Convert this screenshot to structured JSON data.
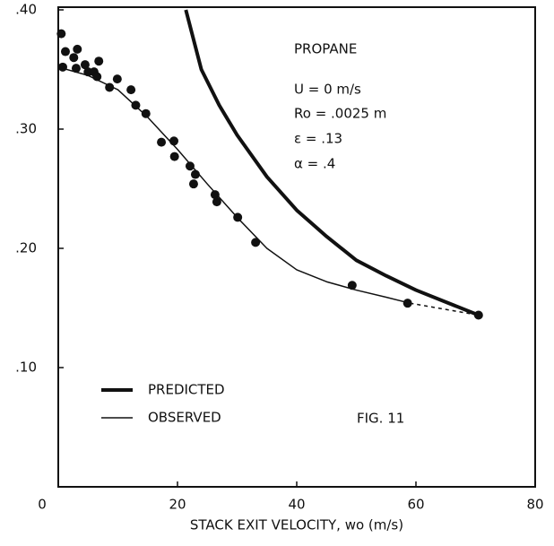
{
  "chart_data": {
    "type": "line",
    "x_label": "STACK EXIT VELOCITY, wo  (m/s)",
    "annotations": [
      "PROPANE",
      "U = 0 m/s",
      "Ro = .0025 m",
      "ε = .13",
      "α = .4",
      "FIG. 11"
    ],
    "xlim": [
      0,
      80
    ],
    "ylim": [
      0,
      0.4
    ],
    "xticks": [
      0,
      20,
      40,
      60,
      80
    ],
    "yticks": [
      {
        "value": 0.1,
        "label": ".10"
      },
      {
        "value": 0.2,
        "label": ".20"
      },
      {
        "value": 0.3,
        "label": ".30"
      },
      {
        "value": 0.4,
        "label": ".40"
      }
    ],
    "series": [
      {
        "name": "PREDICTED",
        "color": "#111111",
        "width": 4,
        "x": [
          21.4,
          24,
          27,
          30,
          35,
          40,
          45,
          50,
          55,
          60,
          65,
          70.5
        ],
        "values": [
          0.4,
          0.35,
          0.32,
          0.295,
          0.26,
          0.232,
          0.21,
          0.19,
          0.177,
          0.165,
          0.155,
          0.144
        ]
      },
      {
        "name": "OBSERVED",
        "color": "#111111",
        "width": 1.5,
        "x": [
          0,
          5,
          10,
          15,
          20,
          25,
          30,
          35,
          40,
          45,
          50,
          55,
          59
        ],
        "values": [
          0.352,
          0.345,
          0.333,
          0.31,
          0.283,
          0.254,
          0.226,
          0.2,
          0.182,
          0.172,
          0.165,
          0.159,
          0.154
        ]
      },
      {
        "color": "#111111",
        "width": 1.5,
        "dashed": true,
        "x": [
          59,
          70.5
        ],
        "values": [
          0.154,
          0.144
        ]
      }
    ],
    "points": {
      "color": "#111111",
      "x": [
        0.5,
        0.75,
        1.2,
        2.6,
        3.2,
        3.0,
        4.5,
        5,
        6,
        6.8,
        6.5,
        8.6,
        9.9,
        12.2,
        13,
        14.7,
        17.3,
        19.4,
        19.5,
        22.1,
        23,
        22.7,
        26.3,
        26.6,
        30.1,
        33.1,
        49.3,
        58.6,
        70.5
      ],
      "values": [
        0.38,
        0.352,
        0.365,
        0.36,
        0.367,
        0.351,
        0.354,
        0.348,
        0.348,
        0.357,
        0.344,
        0.335,
        0.342,
        0.333,
        0.32,
        0.313,
        0.289,
        0.29,
        0.277,
        0.269,
        0.262,
        0.254,
        0.245,
        0.239,
        0.226,
        0.205,
        0.169,
        0.154,
        0.144
      ]
    }
  }
}
